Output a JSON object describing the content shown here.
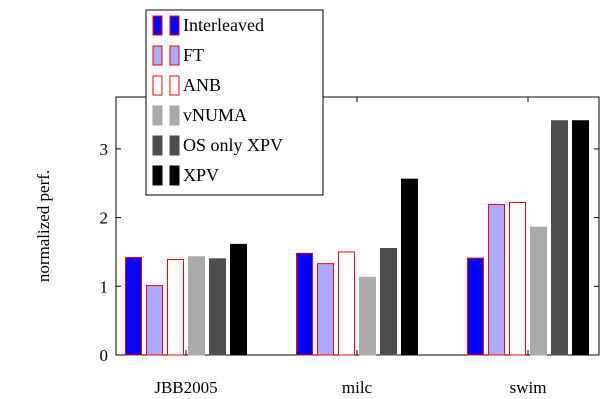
{
  "chart_data": {
    "type": "bar",
    "title": "",
    "xlabel": "",
    "ylabel": "normalized perf.",
    "categories": [
      "JBB2005",
      "milc",
      "swim"
    ],
    "ylim": [
      0,
      3.6
    ],
    "yticks": [
      0,
      1,
      2,
      3
    ],
    "grid": false,
    "legend_position": "top-left",
    "series": [
      {
        "name": "Interleaved",
        "values": [
          1.42,
          1.48,
          1.41
        ],
        "fill": "#0000ff",
        "stroke": "#ff0000"
      },
      {
        "name": "FT",
        "values": [
          1.01,
          1.33,
          2.19
        ],
        "fill": "#aaaaff",
        "stroke": "#ff0000"
      },
      {
        "name": "ANB",
        "values": [
          1.39,
          1.5,
          2.22
        ],
        "fill": "#ffffff",
        "stroke": "#ff0000"
      },
      {
        "name": "vNUMA",
        "values": [
          1.43,
          1.13,
          1.86
        ],
        "fill": "#aaaaaa",
        "stroke": "#aaaaaa"
      },
      {
        "name": "OS only XPV",
        "values": [
          1.4,
          1.55,
          3.41
        ],
        "fill": "#4d4d4d",
        "stroke": "#4d4d4d"
      },
      {
        "name": "XPV",
        "values": [
          1.61,
          2.56,
          3.41
        ],
        "fill": "#000000",
        "stroke": "#000000"
      }
    ]
  }
}
